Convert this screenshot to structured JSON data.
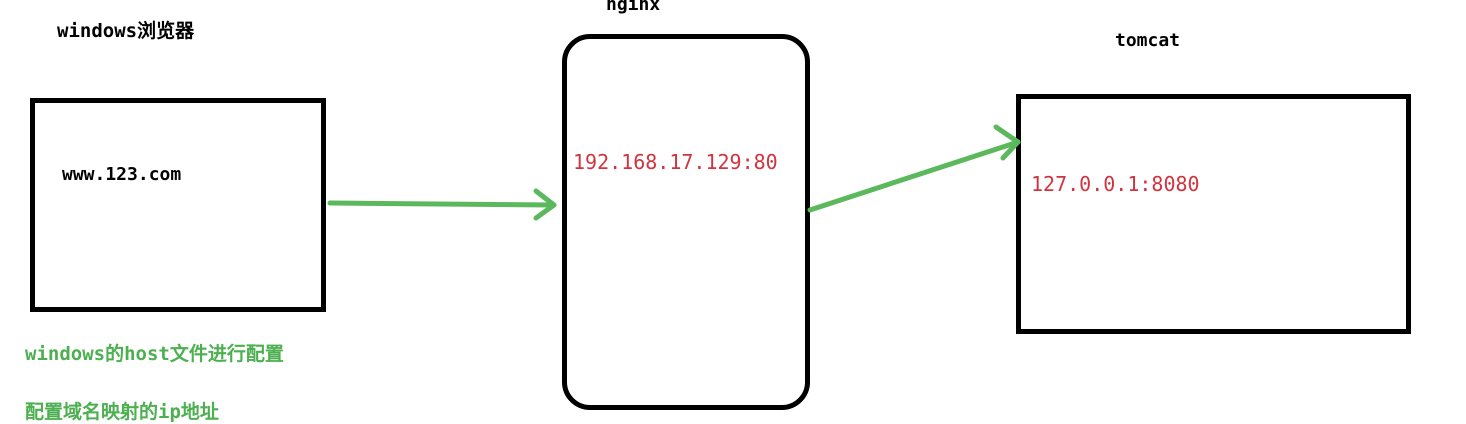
{
  "browser": {
    "title": "windows浏览器",
    "domain": "www.123.com"
  },
  "nginx": {
    "title": "nginx",
    "address": "192.168.17.129:80"
  },
  "tomcat": {
    "title": "tomcat",
    "address": "127.0.0.1:8080"
  },
  "notes": {
    "hosts": "windows的host文件进行配置",
    "mapping": "配置域名映射的ip地址"
  },
  "colors": {
    "box_border": "#000000",
    "address_text": "#d0343f",
    "arrow": "#5cb85c",
    "note_text": "#4caf50"
  }
}
